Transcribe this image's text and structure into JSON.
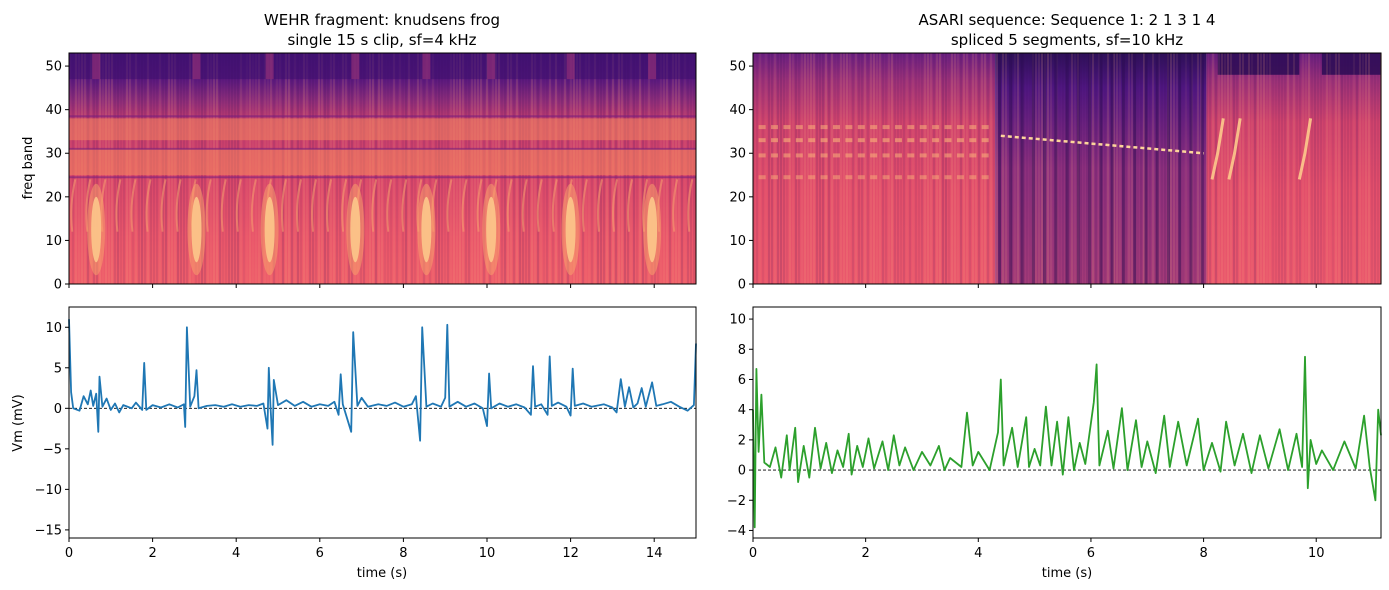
{
  "chart_data": [
    {
      "type": "heatmap",
      "title": "WEHR fragment: knudsens frog",
      "subtitle": "single 15 s clip, sf=4 kHz",
      "xlabel": "",
      "ylabel": "freq band",
      "xlim": [
        0,
        15
      ],
      "ylim": [
        0,
        53
      ],
      "yticks": [
        0,
        10,
        20,
        30,
        40,
        50
      ],
      "xticks": [
        0,
        2,
        4,
        6,
        8,
        10,
        12,
        14
      ],
      "show_x_tick_labels": false,
      "colormap": "magma",
      "call_times_s": [
        0.65,
        3.05,
        4.8,
        6.85,
        8.55,
        10.1,
        12.0,
        13.95
      ],
      "bright_bands": [
        [
          25,
          31
        ],
        [
          33,
          38
        ]
      ]
    },
    {
      "type": "heatmap",
      "title": "ASARI sequence: Sequence 1: 2 1 3 1 4",
      "subtitle": "spliced 5 segments, sf=10 kHz",
      "xlabel": "",
      "ylabel": "",
      "xlim": [
        0,
        11.15
      ],
      "ylim": [
        0,
        53
      ],
      "yticks": [
        0,
        10,
        20,
        30,
        40,
        50
      ],
      "xticks": [
        0,
        2,
        4,
        6,
        8,
        10
      ],
      "show_x_tick_labels": false,
      "colormap": "magma",
      "segment_boundaries_s": [
        4.3,
        8.05,
        9.8
      ]
    },
    {
      "type": "line",
      "title": "",
      "xlabel": "time (s)",
      "ylabel": "Vm (mV)",
      "xlim": [
        0,
        15
      ],
      "ylim": [
        -16,
        12.5
      ],
      "xticks": [
        0,
        2,
        4,
        6,
        8,
        10,
        12,
        14
      ],
      "yticks": [
        -15,
        -10,
        -5,
        0,
        5,
        10
      ],
      "zero_line": true,
      "series": [
        {
          "color": "#1f77b4",
          "points": [
            [
              0,
              11
            ],
            [
              0.05,
              2
            ],
            [
              0.1,
              0
            ],
            [
              0.25,
              -0.3
            ],
            [
              0.35,
              1.5
            ],
            [
              0.45,
              0.5
            ],
            [
              0.52,
              2.2
            ],
            [
              0.58,
              0.3
            ],
            [
              0.65,
              1.8
            ],
            [
              0.7,
              -2.9
            ],
            [
              0.73,
              3.9
            ],
            [
              0.8,
              0.2
            ],
            [
              0.9,
              1.2
            ],
            [
              1.0,
              -0.2
            ],
            [
              1.1,
              0.6
            ],
            [
              1.2,
              -0.5
            ],
            [
              1.3,
              0.4
            ],
            [
              1.5,
              0
            ],
            [
              1.6,
              0.7
            ],
            [
              1.75,
              -0.2
            ],
            [
              1.8,
              5.6
            ],
            [
              1.85,
              -0.2
            ],
            [
              2.0,
              0.4
            ],
            [
              2.2,
              0.1
            ],
            [
              2.4,
              0.5
            ],
            [
              2.6,
              0.1
            ],
            [
              2.75,
              0.5
            ],
            [
              2.78,
              -2.3
            ],
            [
              2.82,
              10
            ],
            [
              2.9,
              0.2
            ],
            [
              3.0,
              1.5
            ],
            [
              3.05,
              4.7
            ],
            [
              3.1,
              0
            ],
            [
              3.3,
              0.3
            ],
            [
              3.5,
              0.4
            ],
            [
              3.7,
              0.2
            ],
            [
              3.9,
              0.5
            ],
            [
              4.1,
              0.2
            ],
            [
              4.3,
              0.4
            ],
            [
              4.5,
              0.3
            ],
            [
              4.65,
              0.6
            ],
            [
              4.75,
              -2.5
            ],
            [
              4.78,
              5
            ],
            [
              4.82,
              0.2
            ],
            [
              4.87,
              -4.5
            ],
            [
              4.9,
              3.5
            ],
            [
              5.0,
              0.4
            ],
            [
              5.2,
              1.0
            ],
            [
              5.4,
              0.3
            ],
            [
              5.6,
              0.8
            ],
            [
              5.8,
              0.2
            ],
            [
              6.0,
              0.5
            ],
            [
              6.2,
              0.3
            ],
            [
              6.35,
              0.8
            ],
            [
              6.45,
              -0.8
            ],
            [
              6.5,
              4.2
            ],
            [
              6.55,
              0.5
            ],
            [
              6.75,
              -2.9
            ],
            [
              6.8,
              9.4
            ],
            [
              6.9,
              0.3
            ],
            [
              7.0,
              1.3
            ],
            [
              7.15,
              0.2
            ],
            [
              7.4,
              0.5
            ],
            [
              7.6,
              0.3
            ],
            [
              7.8,
              0.7
            ],
            [
              8.0,
              0.2
            ],
            [
              8.2,
              0.5
            ],
            [
              8.3,
              1.5
            ],
            [
              8.4,
              -4
            ],
            [
              8.45,
              10
            ],
            [
              8.55,
              0.2
            ],
            [
              8.7,
              0.6
            ],
            [
              8.9,
              0.2
            ],
            [
              9.0,
              1.3
            ],
            [
              9.05,
              10.3
            ],
            [
              9.1,
              0.2
            ],
            [
              9.3,
              0.8
            ],
            [
              9.5,
              0.2
            ],
            [
              9.7,
              0.6
            ],
            [
              9.9,
              0
            ],
            [
              10.0,
              -2.2
            ],
            [
              10.05,
              4.3
            ],
            [
              10.1,
              0
            ],
            [
              10.3,
              0.6
            ],
            [
              10.5,
              0.2
            ],
            [
              10.7,
              0.5
            ],
            [
              10.9,
              0.1
            ],
            [
              11.05,
              -0.8
            ],
            [
              11.1,
              5.2
            ],
            [
              11.15,
              0.2
            ],
            [
              11.3,
              0.5
            ],
            [
              11.45,
              -0.8
            ],
            [
              11.5,
              6.4
            ],
            [
              11.55,
              0.3
            ],
            [
              11.7,
              0.7
            ],
            [
              11.9,
              0.2
            ],
            [
              12.0,
              -0.9
            ],
            [
              12.05,
              4.9
            ],
            [
              12.1,
              0.3
            ],
            [
              12.3,
              0.6
            ],
            [
              12.5,
              0.2
            ],
            [
              12.8,
              0.5
            ],
            [
              13.0,
              0.1
            ],
            [
              13.1,
              -0.5
            ],
            [
              13.2,
              3.6
            ],
            [
              13.3,
              0.2
            ],
            [
              13.4,
              2.6
            ],
            [
              13.5,
              0.1
            ],
            [
              13.6,
              0.6
            ],
            [
              13.7,
              2.5
            ],
            [
              13.8,
              0.2
            ],
            [
              13.95,
              3.2
            ],
            [
              14.05,
              0.3
            ],
            [
              14.2,
              0.5
            ],
            [
              14.4,
              0.8
            ],
            [
              14.6,
              0.2
            ],
            [
              14.8,
              -0.3
            ],
            [
              14.95,
              0.4
            ],
            [
              15.0,
              8
            ]
          ]
        }
      ]
    },
    {
      "type": "line",
      "title": "",
      "xlabel": "time (s)",
      "ylabel": "",
      "xlim": [
        0,
        11.15
      ],
      "ylim": [
        -4.5,
        10.8
      ],
      "xticks": [
        0,
        2,
        4,
        6,
        8,
        10
      ],
      "yticks": [
        -4,
        -2,
        0,
        2,
        4,
        6,
        8,
        10
      ],
      "zero_line": true,
      "series": [
        {
          "color": "#2ca02c",
          "points": [
            [
              0,
              4
            ],
            [
              0.03,
              -3.8
            ],
            [
              0.06,
              6.7
            ],
            [
              0.1,
              1.2
            ],
            [
              0.15,
              5
            ],
            [
              0.2,
              0.5
            ],
            [
              0.3,
              0.2
            ],
            [
              0.4,
              1.5
            ],
            [
              0.5,
              -0.5
            ],
            [
              0.6,
              2.3
            ],
            [
              0.65,
              0
            ],
            [
              0.75,
              2.8
            ],
            [
              0.8,
              -0.8
            ],
            [
              0.9,
              1.6
            ],
            [
              1.0,
              -0.5
            ],
            [
              1.1,
              2.8
            ],
            [
              1.2,
              0.1
            ],
            [
              1.3,
              1.8
            ],
            [
              1.4,
              -0.2
            ],
            [
              1.5,
              1.3
            ],
            [
              1.6,
              0.2
            ],
            [
              1.7,
              2.4
            ],
            [
              1.75,
              -0.3
            ],
            [
              1.85,
              1.6
            ],
            [
              1.95,
              0.2
            ],
            [
              2.05,
              2.1
            ],
            [
              2.15,
              0.1
            ],
            [
              2.3,
              1.9
            ],
            [
              2.4,
              0
            ],
            [
              2.5,
              2.3
            ],
            [
              2.6,
              0.3
            ],
            [
              2.7,
              1.5
            ],
            [
              2.85,
              0
            ],
            [
              3.0,
              1.2
            ],
            [
              3.15,
              0.3
            ],
            [
              3.3,
              1.6
            ],
            [
              3.4,
              0
            ],
            [
              3.5,
              0.8
            ],
            [
              3.7,
              0.2
            ],
            [
              3.8,
              3.8
            ],
            [
              3.9,
              0.3
            ],
            [
              4.0,
              1.2
            ],
            [
              4.2,
              0
            ],
            [
              4.35,
              2.5
            ],
            [
              4.4,
              6
            ],
            [
              4.45,
              0.3
            ],
            [
              4.6,
              2.8
            ],
            [
              4.7,
              0.2
            ],
            [
              4.85,
              3.5
            ],
            [
              4.9,
              0.2
            ],
            [
              5.0,
              1.4
            ],
            [
              5.1,
              0.3
            ],
            [
              5.2,
              4.2
            ],
            [
              5.3,
              0.3
            ],
            [
              5.4,
              3.2
            ],
            [
              5.5,
              -0.3
            ],
            [
              5.6,
              3.5
            ],
            [
              5.7,
              0
            ],
            [
              5.8,
              1.8
            ],
            [
              5.9,
              0.4
            ],
            [
              6.05,
              4.5
            ],
            [
              6.1,
              7
            ],
            [
              6.15,
              0.3
            ],
            [
              6.3,
              2.6
            ],
            [
              6.4,
              0.1
            ],
            [
              6.55,
              4.1
            ],
            [
              6.65,
              0
            ],
            [
              6.8,
              3.3
            ],
            [
              6.9,
              0.2
            ],
            [
              7.0,
              1.9
            ],
            [
              7.15,
              -0.2
            ],
            [
              7.3,
              3.6
            ],
            [
              7.4,
              0.2
            ],
            [
              7.55,
              3.2
            ],
            [
              7.7,
              0.3
            ],
            [
              7.9,
              3.4
            ],
            [
              8.0,
              0
            ],
            [
              8.15,
              1.8
            ],
            [
              8.3,
              -0.1
            ],
            [
              8.4,
              3.2
            ],
            [
              8.55,
              0.3
            ],
            [
              8.7,
              2.4
            ],
            [
              8.85,
              -0.2
            ],
            [
              9.0,
              2.3
            ],
            [
              9.15,
              0.1
            ],
            [
              9.35,
              2.7
            ],
            [
              9.5,
              0
            ],
            [
              9.65,
              2.4
            ],
            [
              9.75,
              0.2
            ],
            [
              9.8,
              7.5
            ],
            [
              9.85,
              -1.2
            ],
            [
              9.9,
              2
            ],
            [
              10.0,
              0.4
            ],
            [
              10.1,
              1.3
            ],
            [
              10.3,
              0
            ],
            [
              10.5,
              1.9
            ],
            [
              10.7,
              0.1
            ],
            [
              10.85,
              3.6
            ],
            [
              10.95,
              0.2
            ],
            [
              11.05,
              -2
            ],
            [
              11.1,
              4
            ],
            [
              11.15,
              2.3
            ]
          ]
        }
      ]
    }
  ]
}
